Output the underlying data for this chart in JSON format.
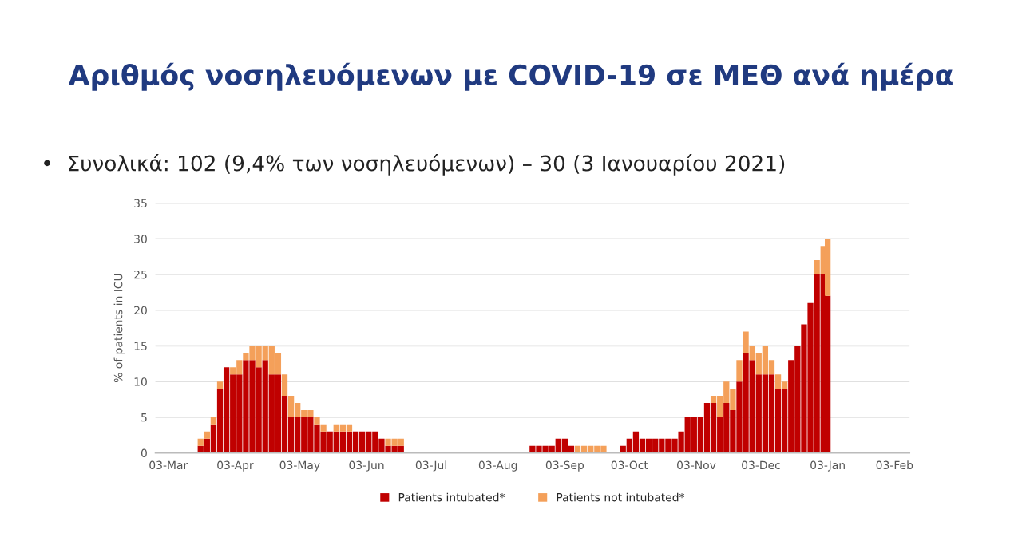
{
  "chart_data": {
    "type": "bar",
    "title": "Αριθμός νοσηλευόμενων με COVID-19 σε ΜΕΘ ανά ημέρα",
    "subtitle": "•  Συνολικά: 102 (9,4% των νοσηλευόμενων) – 30 (3 Ιανουαρίου 2021)",
    "ylabel": "% of patients in ICU",
    "stacked": true,
    "x": [
      "2020-03-18",
      "2020-03-21",
      "2020-03-24",
      "2020-03-27",
      "2020-03-30",
      "2020-04-02",
      "2020-04-05",
      "2020-04-08",
      "2020-04-11",
      "2020-04-14",
      "2020-04-17",
      "2020-04-20",
      "2020-04-23",
      "2020-04-26",
      "2020-04-29",
      "2020-05-02",
      "2020-05-05",
      "2020-05-08",
      "2020-05-11",
      "2020-05-14",
      "2020-05-17",
      "2020-05-20",
      "2020-05-23",
      "2020-05-26",
      "2020-05-29",
      "2020-06-01",
      "2020-06-04",
      "2020-06-07",
      "2020-06-10",
      "2020-06-13",
      "2020-06-16",
      "2020-06-19",
      "2020-08-19",
      "2020-08-22",
      "2020-08-25",
      "2020-08-28",
      "2020-08-31",
      "2020-09-03",
      "2020-09-06",
      "2020-09-09",
      "2020-09-12",
      "2020-09-15",
      "2020-09-18",
      "2020-09-21",
      "2020-09-30",
      "2020-10-03",
      "2020-10-06",
      "2020-10-09",
      "2020-10-12",
      "2020-10-15",
      "2020-10-18",
      "2020-10-21",
      "2020-10-24",
      "2020-10-27",
      "2020-10-30",
      "2020-11-02",
      "2020-11-05",
      "2020-11-08",
      "2020-11-11",
      "2020-11-14",
      "2020-11-17",
      "2020-11-20",
      "2020-11-23",
      "2020-11-26",
      "2020-11-29",
      "2020-12-02",
      "2020-12-05",
      "2020-12-08",
      "2020-12-11",
      "2020-12-14",
      "2020-12-17",
      "2020-12-20",
      "2020-12-23",
      "2020-12-26",
      "2020-12-29",
      "2021-01-01",
      "2021-01-03"
    ],
    "series": [
      {
        "name": "Patients intubated*",
        "color": "#c00000",
        "values": [
          1,
          2,
          4,
          9,
          12,
          11,
          11,
          13,
          13,
          12,
          13,
          11,
          11,
          8,
          5,
          5,
          5,
          5,
          4,
          3,
          3,
          3,
          3,
          3,
          3,
          3,
          3,
          3,
          2,
          1,
          1,
          1,
          1,
          1,
          1,
          1,
          2,
          2,
          1,
          0,
          0,
          0,
          0,
          0,
          1,
          2,
          3,
          2,
          2,
          2,
          2,
          2,
          2,
          3,
          5,
          5,
          5,
          7,
          7,
          5,
          7,
          6,
          10,
          14,
          13,
          11,
          11,
          11,
          9,
          9,
          13,
          15,
          18,
          21,
          25,
          25,
          22
        ]
      },
      {
        "name": "Patients not intubated*",
        "color": "#f4a05a",
        "values": [
          1,
          1,
          1,
          1,
          0,
          1,
          2,
          1,
          2,
          3,
          2,
          4,
          3,
          3,
          3,
          2,
          1,
          1,
          1,
          1,
          0,
          1,
          1,
          1,
          0,
          0,
          0,
          0,
          0,
          1,
          1,
          1,
          0,
          0,
          0,
          0,
          0,
          0,
          0,
          1,
          1,
          1,
          1,
          1,
          0,
          0,
          0,
          0,
          0,
          0,
          0,
          0,
          0,
          0,
          0,
          0,
          0,
          0,
          1,
          3,
          3,
          3,
          3,
          3,
          2,
          3,
          4,
          2,
          2,
          1,
          0,
          0,
          0,
          0,
          2,
          4,
          8
        ]
      }
    ],
    "xlim": [
      "2020-02-26",
      "2021-02-10"
    ],
    "xticks": [
      {
        "value": "2020-03-03",
        "label": "03-Mar"
      },
      {
        "value": "2020-04-03",
        "label": "03-Apr"
      },
      {
        "value": "2020-05-03",
        "label": "03-May"
      },
      {
        "value": "2020-06-03",
        "label": "03-Jun"
      },
      {
        "value": "2020-07-03",
        "label": "03-Jul"
      },
      {
        "value": "2020-08-03",
        "label": "03-Aug"
      },
      {
        "value": "2020-09-03",
        "label": "03-Sep"
      },
      {
        "value": "2020-10-03",
        "label": "03-Oct"
      },
      {
        "value": "2020-11-03",
        "label": "03-Nov"
      },
      {
        "value": "2020-12-03",
        "label": "03-Dec"
      },
      {
        "value": "2021-01-03",
        "label": "03-Jan"
      },
      {
        "value": "2021-02-03",
        "label": "03-Feb"
      }
    ],
    "ylim": [
      0,
      35
    ],
    "yticks": [
      0,
      5,
      10,
      15,
      20,
      25,
      30,
      35
    ],
    "grid": "y",
    "legend": "bottom"
  }
}
